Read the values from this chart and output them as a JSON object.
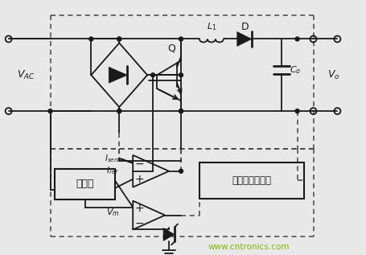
{
  "background_color": "#e8e8e8",
  "line_color": "#1a1a1a",
  "dashed_color": "#444444",
  "watermark_color": "#7fba00",
  "watermark": "www.cntronics.com",
  "box1_text": "乘法器",
  "box2_text": "取样和低通滤波"
}
